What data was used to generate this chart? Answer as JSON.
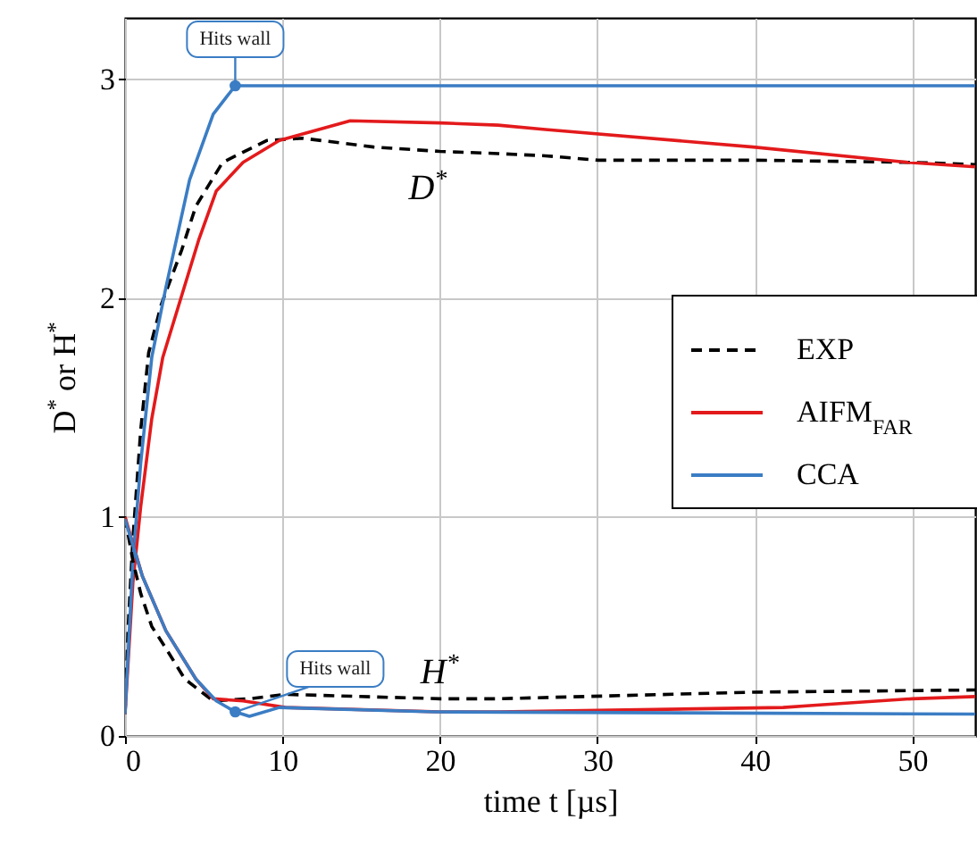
{
  "chart_data": {
    "type": "line",
    "xlabel": "time t [µs]",
    "ylabel": "D$^{*}$ or H$^{*}$",
    "xlim": [
      0,
      54
    ],
    "ylim": [
      0,
      3.28
    ],
    "xticks": [
      0,
      10,
      20,
      30,
      40,
      50
    ],
    "yticks": [
      0,
      1,
      2,
      3
    ],
    "grid": true,
    "legend": "right",
    "series": [
      {
        "name": "EXP",
        "color": "#000000",
        "line_style": "dashed",
        "x": [
          0,
          0.2,
          0.5,
          1,
          1.5,
          2.3,
          3.6,
          4.5,
          6.2,
          9,
          11.3,
          15.8,
          20,
          23.7,
          26.7,
          30,
          39.9,
          50,
          54
        ],
        "values": [
          0.1,
          0.5,
          0.9,
          1.4,
          1.75,
          1.97,
          2.22,
          2.42,
          2.62,
          2.72,
          2.73,
          2.69,
          2.67,
          2.66,
          2.65,
          2.63,
          2.63,
          2.62,
          2.61
        ]
      },
      {
        "name": "AIFM$_{FAR}$",
        "color": "#e31a1c",
        "line_style": "solid",
        "x": [
          0,
          0.5,
          1,
          1.7,
          2.4,
          4.7,
          5.8,
          7.5,
          9.8,
          14.3,
          20,
          23.7,
          26.7,
          39.9,
          49.7,
          54
        ],
        "values": [
          0.1,
          0.7,
          1.05,
          1.45,
          1.73,
          2.27,
          2.49,
          2.62,
          2.72,
          2.81,
          2.8,
          2.79,
          2.77,
          2.69,
          2.62,
          2.6
        ]
      },
      {
        "name": "CCA",
        "color": "#3b7dc4",
        "line_style": "solid",
        "x": [
          0,
          0.5,
          1,
          1.7,
          2.6,
          4.1,
          5.6,
          7,
          54
        ],
        "values": [
          0.1,
          0.8,
          1.25,
          1.73,
          2.05,
          2.54,
          2.84,
          2.97,
          2.97
        ]
      },
      {
        "color": "#000000",
        "line_style": "dashed",
        "x": [
          0,
          0.5,
          1,
          1.7,
          2.6,
          3.8,
          5.6,
          7.9,
          10.2,
          20,
          23.7,
          39.9,
          54
        ],
        "values": [
          1.0,
          0.8,
          0.65,
          0.5,
          0.4,
          0.26,
          0.16,
          0.17,
          0.19,
          0.17,
          0.17,
          0.2,
          0.21
        ]
      },
      {
        "color": "#e31a1c",
        "line_style": "solid",
        "x": [
          0,
          1.1,
          2.6,
          4.5,
          5.6,
          7.5,
          10.2,
          20,
          23.7,
          41.8,
          43.7,
          50,
          54
        ],
        "values": [
          1.0,
          0.73,
          0.48,
          0.26,
          0.17,
          0.16,
          0.13,
          0.11,
          0.11,
          0.13,
          0.14,
          0.17,
          0.18
        ]
      },
      {
        "color": "#3b7dc4",
        "line_style": "solid",
        "x": [
          0,
          1.1,
          2.6,
          4.5,
          5.8,
          7,
          7.9,
          9.8,
          19.6,
          54
        ],
        "values": [
          0.99,
          0.73,
          0.48,
          0.26,
          0.16,
          0.11,
          0.09,
          0.13,
          0.11,
          0.1
        ]
      }
    ],
    "annotations": [
      {
        "text": "Hits wall",
        "x": 7,
        "y": 2.97
      },
      "D$^{*}$",
      {
        "text": "Hits wall",
        "x": 7,
        "y": 0.11
      },
      "H$^{*}$"
    ]
  }
}
